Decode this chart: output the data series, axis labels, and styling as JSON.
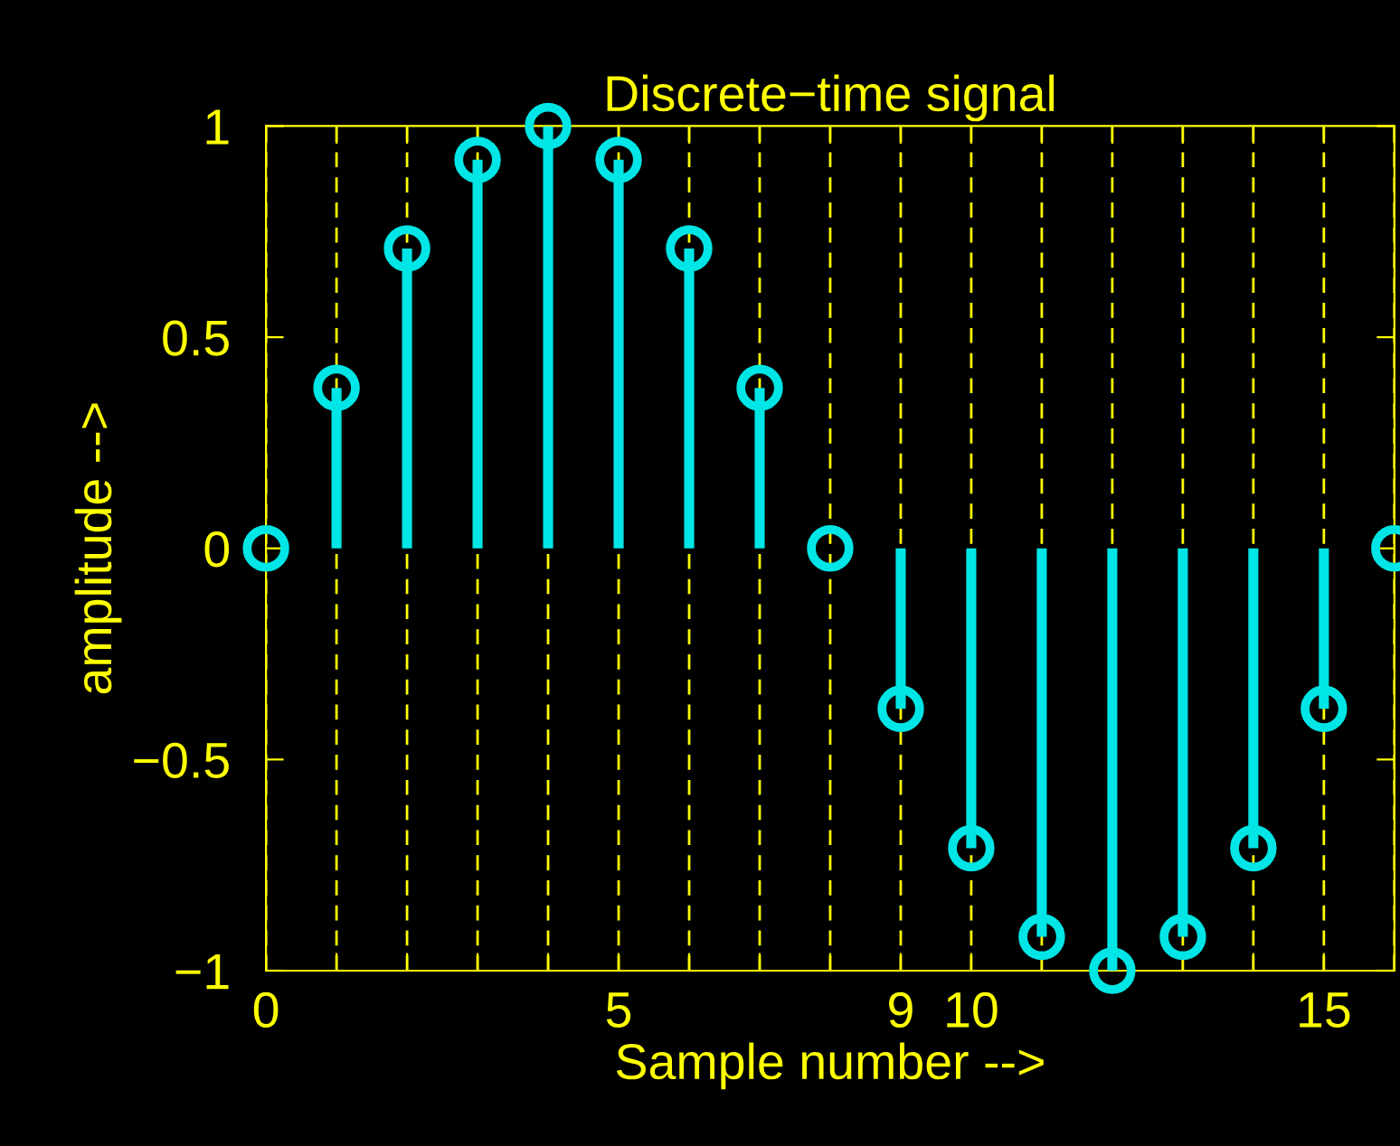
{
  "chart_data": {
    "type": "lollipop",
    "title": "Discrete−time signal",
    "xlabel": "Sample number -->",
    "ylabel": "amplitude -->",
    "x": [
      0,
      1,
      2,
      3,
      4,
      5,
      6,
      7,
      8,
      9,
      10,
      11,
      12,
      13,
      14,
      15,
      16
    ],
    "series": [
      {
        "color": "#00e5e5",
        "values": [
          0,
          0.38,
          0.71,
          0.92,
          1,
          0.92,
          0.71,
          0.38,
          0,
          -0.38,
          -0.71,
          -0.92,
          -1,
          -0.92,
          -0.71,
          -0.38,
          0
        ]
      }
    ],
    "xlim": [
      0,
      16
    ],
    "ylim": [
      -1,
      1
    ],
    "xticks": [
      0,
      {
        "value": 1,
        "label": null
      },
      {
        "value": 2,
        "label": null
      },
      {
        "value": 3,
        "label": null
      },
      {
        "value": 4,
        "label": null
      },
      5,
      {
        "value": 6,
        "label": null
      },
      {
        "value": 7,
        "label": null
      },
      {
        "value": 8,
        "label": null
      },
      9,
      10,
      {
        "value": 11,
        "label": null
      },
      {
        "value": 12,
        "label": null
      },
      {
        "value": 13,
        "label": null
      },
      {
        "value": 14,
        "label": null
      },
      15,
      {
        "value": 16,
        "label": null
      }
    ],
    "yticks": [
      -1,
      -0.5,
      0,
      0.5,
      1
    ],
    "grid": "x",
    "marker": "circle",
    "legend": false
  }
}
